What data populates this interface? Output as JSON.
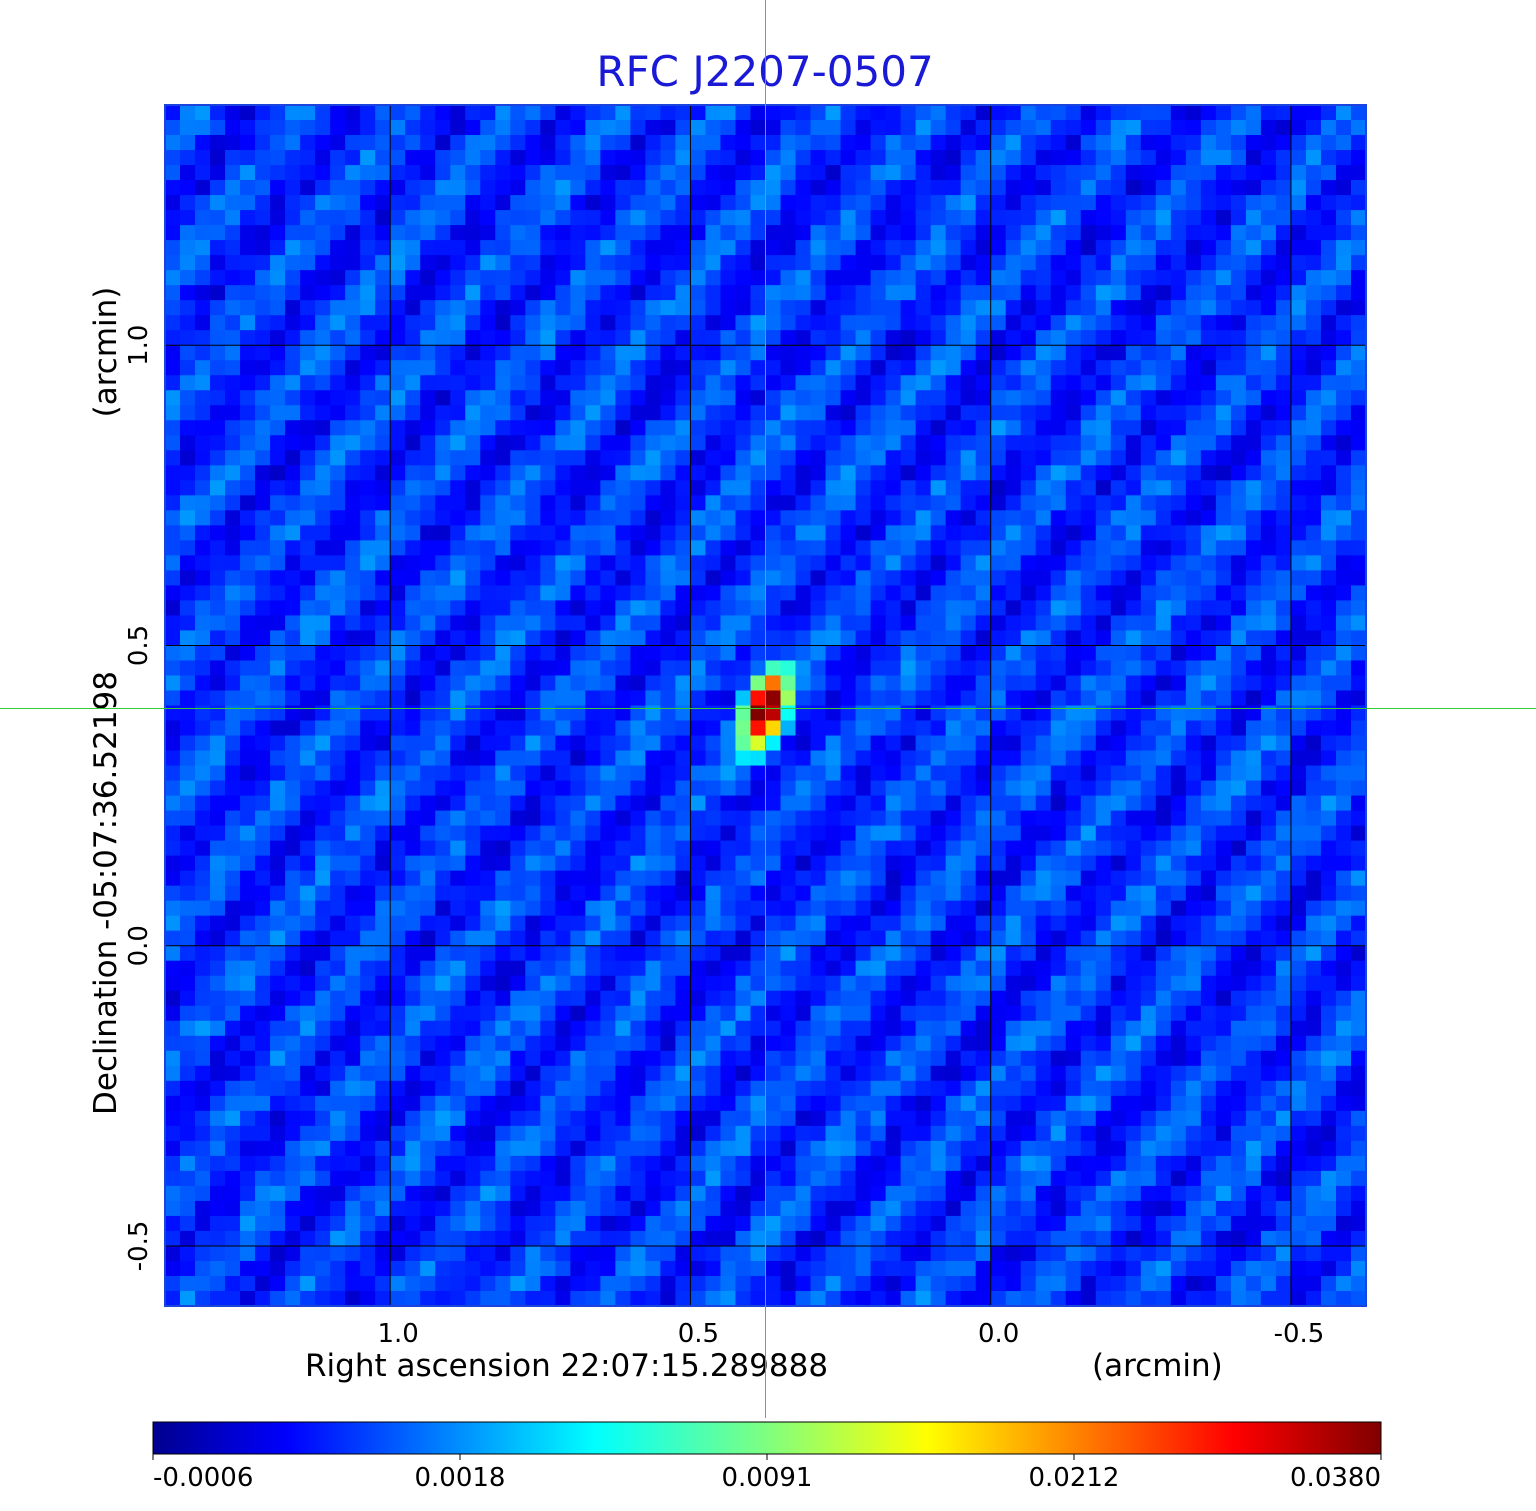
{
  "chart_data": {
    "type": "heatmap",
    "title": "RFC J2207-0507",
    "xlabel": "Right ascension  22:07:15.289888",
    "xunit": "(arcmin)",
    "ylabel": "Declination  -05:07:36.52198",
    "yunit": "(arcmin)",
    "xlim": [
      1.375,
      -0.625
    ],
    "ylim": [
      -0.6,
      1.4
    ],
    "x_ticks": [
      1.0,
      0.5,
      0.0,
      -0.5
    ],
    "x_tick_labels": [
      "1.0",
      "0.5",
      "0.0",
      "-0.5"
    ],
    "y_ticks": [
      1.0,
      0.5,
      0.0,
      -0.5
    ],
    "y_tick_labels": [
      "1.0",
      "0.5",
      "0.0",
      "-0.5"
    ],
    "grid": true,
    "source": {
      "x": 0.375,
      "y": 0.395,
      "peak": 0.038
    },
    "crosshair": {
      "x": 0.375,
      "y": 0.395,
      "color": "#33cc33"
    },
    "colorbar": {
      "position": "bottom",
      "colormap": "jet",
      "tick_labels": [
        "-0.0006",
        "0.0018",
        "0.0091",
        "0.0212",
        "0.0380"
      ],
      "tick_values": [
        -0.0006,
        0.0018,
        0.0091,
        0.0212,
        0.038
      ]
    },
    "background_level": 0.0008
  }
}
